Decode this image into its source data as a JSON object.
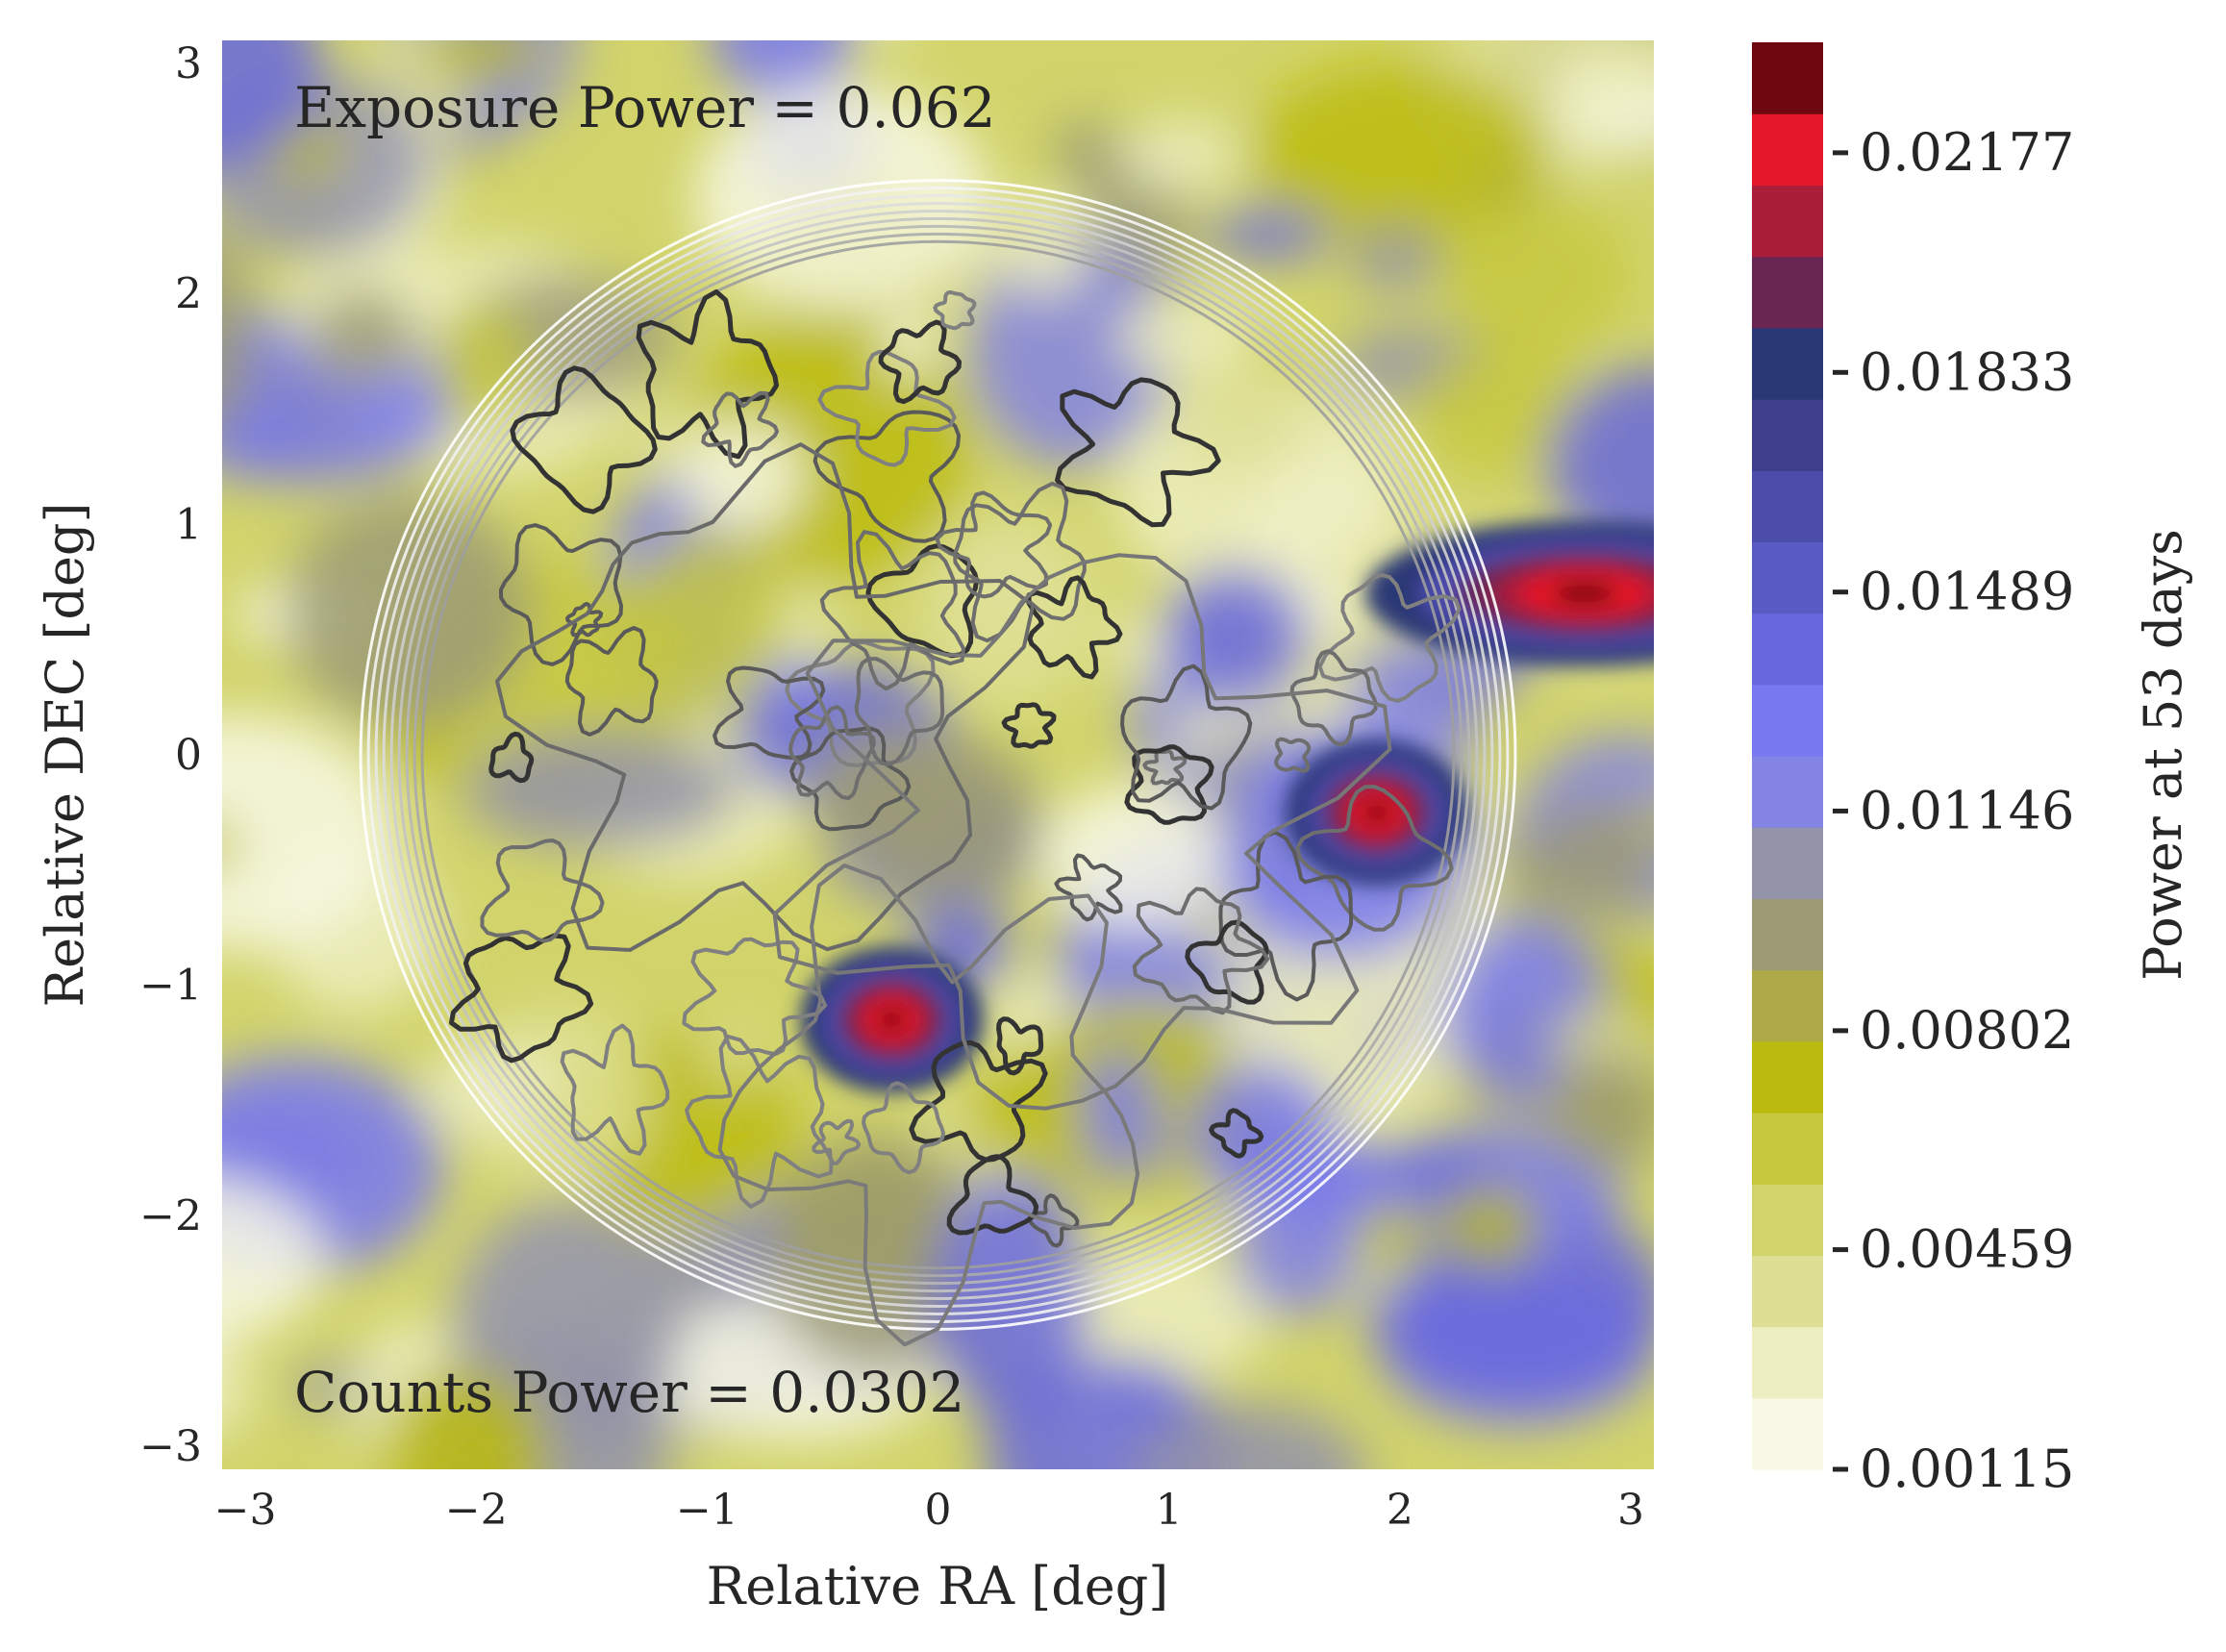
{
  "chart_data": {
    "type": "heatmap",
    "title": "",
    "xlabel": "Relative RA [deg]",
    "ylabel": "Relative DEC [deg]",
    "xlim": [
      -3.1,
      3.1
    ],
    "ylim": [
      -3.1,
      3.1
    ],
    "x_ticks": [
      "−3",
      "−2",
      "−1",
      "0",
      "1",
      "2",
      "3"
    ],
    "y_ticks": [
      "−3",
      "−2",
      "−1",
      "0",
      "1",
      "2",
      "3"
    ],
    "x_tick_values": [
      -3,
      -2,
      -1,
      0,
      1,
      2,
      3
    ],
    "y_tick_values": [
      -3,
      -2,
      -1,
      0,
      1,
      2,
      3
    ],
    "grid": false,
    "annotations": {
      "exposure": "Exposure Power = 0.062",
      "counts": "Counts Power = 0.0302"
    },
    "colorbar": {
      "label": "Power at 53 days",
      "range": [
        0.00115,
        0.0235
      ],
      "ticks": [
        "0.00115",
        "0.00459",
        "0.00802",
        "0.01146",
        "0.01489",
        "0.01833",
        "0.02177"
      ],
      "tick_values": [
        0.00115,
        0.00459,
        0.00802,
        0.01146,
        0.01489,
        0.01833,
        0.02177
      ],
      "levels": [
        "#f8f9e6",
        "#edefc0",
        "#dedf94",
        "#d2d46b",
        "#c6c83e",
        "#bbbb0f",
        "#aeaa48",
        "#9c9b75",
        "#9393a9",
        "#8484e4",
        "#7878f0",
        "#6868dc",
        "#5a5ac3",
        "#4c4cab",
        "#3e3e8c",
        "#2a3876",
        "#6a2652",
        "#aa1e3a",
        "#e41828",
        "#6e0710"
      ]
    },
    "features": [
      {
        "name": "exposure-disk",
        "center": [
          0.0,
          0.0
        ],
        "radius": 2.5
      },
      {
        "name": "hotspot",
        "center": [
          -0.2,
          -1.15
        ],
        "power": 0.023
      },
      {
        "name": "hotspot",
        "center": [
          1.9,
          -0.25
        ],
        "power": 0.023
      },
      {
        "name": "hotspot",
        "center": [
          2.8,
          0.7
        ],
        "power": 0.021
      }
    ]
  }
}
